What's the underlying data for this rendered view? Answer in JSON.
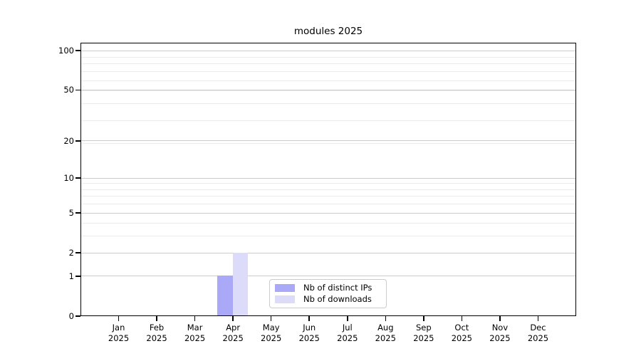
{
  "chart_data": {
    "type": "bar",
    "title": "modules 2025",
    "categories": [
      "Jan",
      "Feb",
      "Mar",
      "Apr",
      "May",
      "Jun",
      "Jul",
      "Aug",
      "Sep",
      "Oct",
      "Nov",
      "Dec"
    ],
    "tick_year": "2025",
    "series": [
      {
        "name": "Nb of distinct IPs",
        "color": "#a9a9f8",
        "values": [
          0,
          0,
          0,
          1,
          0,
          0,
          0,
          0,
          0,
          0,
          0,
          0
        ]
      },
      {
        "name": "Nb of downloads",
        "color": "#dcdcfa",
        "values": [
          0,
          0,
          0,
          2,
          0,
          0,
          0,
          0,
          0,
          0,
          0,
          0
        ]
      }
    ],
    "xlabel": "",
    "ylabel": "",
    "y_scale": "log1p",
    "y_ticks": [
      0,
      1,
      2,
      5,
      10,
      20,
      50,
      100
    ],
    "y_minor_gridlines": [
      3,
      4,
      6,
      7,
      8,
      9,
      19,
      29,
      39,
      49,
      59,
      69,
      79,
      89
    ],
    "ylim": [
      0,
      115
    ],
    "grid": true,
    "legend_position": "lower center",
    "colors": {
      "major_grid": "#cccccc",
      "minor_grid": "#ececec",
      "spine": "#000000",
      "text": "#000000"
    }
  }
}
